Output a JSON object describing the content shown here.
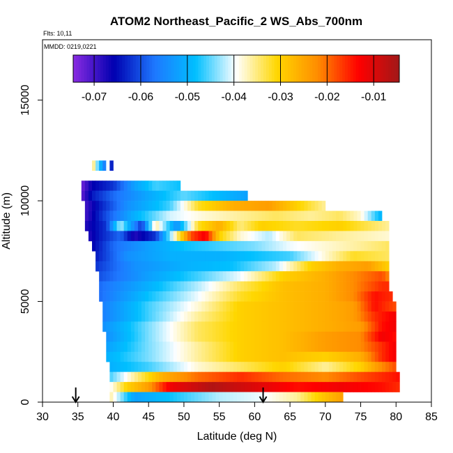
{
  "chart_data": {
    "type": "heatmap",
    "title": "ATOM2 Northeast_Pacific_2 WS_Abs_700nm",
    "flights_label": "Flts: 10,11",
    "dates_label": "MMDD: 0219,0221",
    "xlabel": "Latitude (deg N)",
    "ylabel": "Altitude (m)",
    "xlim": [
      30,
      85
    ],
    "ylim": [
      0,
      18000
    ],
    "x_ticks": [
      30,
      35,
      40,
      45,
      50,
      55,
      60,
      65,
      70,
      75,
      80,
      85
    ],
    "y_ticks": [
      0,
      5000,
      10000,
      15000
    ],
    "grid": false,
    "colorbar": {
      "position": "top-inset",
      "range": [
        -0.0745,
        -0.0045
      ],
      "ticks": [
        -0.07,
        -0.06,
        -0.05,
        -0.04,
        -0.03,
        -0.02,
        -0.01
      ],
      "tick_labels": [
        "-0.07",
        "-0.06",
        "-0.05",
        "-0.04",
        "-0.03",
        "-0.02",
        "-0.01"
      ],
      "colors": [
        "#8a2be2",
        "#0000b0",
        "#1e78ff",
        "#00bfff",
        "#ffffff",
        "#ffd700",
        "#ff8c00",
        "#ff0000",
        "#a01818"
      ]
    },
    "profile_markers": [
      {
        "lat": 34.7,
        "symbol": "arrow-down"
      },
      {
        "lat": 61.2,
        "symbol": "arrow-down"
      }
    ],
    "bands": [
      {
        "alt": [
          11500,
          12000
        ],
        "lat": [
          37,
          40
        ],
        "segments": [
          [
            37,
            -0.032
          ],
          [
            38,
            -0.048
          ],
          [
            38.8,
            -0.056
          ],
          [
            39.3,
            -0.038
          ],
          [
            39.8,
            -0.066
          ]
        ]
      },
      {
        "alt": [
          10500,
          11000
        ],
        "lat": [
          35.5,
          49.5
        ],
        "segments": [
          [
            35.5,
            -0.073
          ],
          [
            37,
            -0.066
          ],
          [
            40,
            -0.062
          ],
          [
            43,
            -0.052
          ],
          [
            46,
            -0.046
          ],
          [
            49.5,
            -0.048
          ]
        ]
      },
      {
        "alt": [
          10000,
          10500
        ],
        "lat": [
          35.5,
          59
        ],
        "segments": [
          [
            35.5,
            -0.072
          ],
          [
            37,
            -0.064
          ],
          [
            40,
            -0.058
          ],
          [
            45,
            -0.051
          ],
          [
            50,
            -0.045
          ],
          [
            55,
            -0.049
          ],
          [
            59,
            -0.052
          ]
        ]
      },
      {
        "alt": [
          9500,
          10000
        ],
        "lat": [
          36,
          70
        ],
        "segments": [
          [
            36,
            -0.07
          ],
          [
            38,
            -0.064
          ],
          [
            42,
            -0.054
          ],
          [
            48,
            -0.046
          ],
          [
            52,
            -0.032
          ],
          [
            57,
            -0.026
          ],
          [
            62,
            -0.024
          ],
          [
            66,
            -0.03
          ],
          [
            70,
            -0.036
          ]
        ]
      },
      {
        "alt": [
          9000,
          9500
        ],
        "lat": [
          36,
          78
        ],
        "segments": [
          [
            36,
            -0.07
          ],
          [
            39,
            -0.06
          ],
          [
            43,
            -0.05
          ],
          [
            48,
            -0.041
          ],
          [
            53,
            -0.038
          ],
          [
            58,
            -0.036
          ],
          [
            63,
            -0.034
          ],
          [
            68,
            -0.036
          ],
          [
            72,
            -0.034
          ],
          [
            75,
            -0.038
          ],
          [
            78,
            -0.05
          ]
        ]
      },
      {
        "alt": [
          8500,
          9000
        ],
        "lat": [
          36,
          79
        ],
        "segments": [
          [
            36,
            -0.068
          ],
          [
            39,
            -0.062
          ],
          [
            41,
            -0.042
          ],
          [
            44,
            -0.062
          ],
          [
            46,
            -0.036
          ],
          [
            49,
            -0.054
          ],
          [
            52,
            -0.032
          ],
          [
            55,
            -0.026
          ],
          [
            58,
            -0.035
          ],
          [
            61,
            -0.03
          ],
          [
            66,
            -0.032
          ],
          [
            72,
            -0.03
          ],
          [
            79,
            -0.036
          ]
        ]
      },
      {
        "alt": [
          8000,
          8500
        ],
        "lat": [
          36.5,
          79
        ],
        "segments": [
          [
            36.5,
            -0.068
          ],
          [
            38,
            -0.064
          ],
          [
            41,
            -0.058
          ],
          [
            43,
            -0.068
          ],
          [
            46,
            -0.062
          ],
          [
            48,
            -0.044
          ],
          [
            51,
            -0.018
          ],
          [
            53,
            -0.012
          ],
          [
            55,
            -0.03
          ],
          [
            58,
            -0.038
          ],
          [
            62,
            -0.042
          ],
          [
            66,
            -0.034
          ],
          [
            72,
            -0.036
          ],
          [
            79,
            -0.038
          ]
        ]
      },
      {
        "alt": [
          7500,
          8000
        ],
        "lat": [
          37,
          79
        ],
        "segments": [
          [
            37,
            -0.066
          ],
          [
            40,
            -0.058
          ],
          [
            45,
            -0.052
          ],
          [
            50,
            -0.048
          ],
          [
            55,
            -0.046
          ],
          [
            60,
            -0.044
          ],
          [
            65,
            -0.04
          ],
          [
            70,
            -0.038
          ],
          [
            75,
            -0.036
          ],
          [
            79,
            -0.034
          ]
        ]
      },
      {
        "alt": [
          7000,
          7500
        ],
        "lat": [
          37.5,
          79
        ],
        "segments": [
          [
            37.5,
            -0.064
          ],
          [
            42,
            -0.054
          ],
          [
            48,
            -0.05
          ],
          [
            55,
            -0.05
          ],
          [
            60,
            -0.048
          ],
          [
            65,
            -0.046
          ],
          [
            70,
            -0.038
          ],
          [
            74,
            -0.032
          ],
          [
            79,
            -0.034
          ]
        ]
      },
      {
        "alt": [
          6500,
          7000
        ],
        "lat": [
          37.5,
          79
        ],
        "segments": [
          [
            37.5,
            -0.062
          ],
          [
            43,
            -0.054
          ],
          [
            50,
            -0.05
          ],
          [
            57,
            -0.048
          ],
          [
            63,
            -0.042
          ],
          [
            68,
            -0.03
          ],
          [
            72,
            -0.026
          ],
          [
            76,
            -0.024
          ],
          [
            79,
            -0.03
          ]
        ]
      },
      {
        "alt": [
          6000,
          6500
        ],
        "lat": [
          38,
          79
        ],
        "segments": [
          [
            38,
            -0.06
          ],
          [
            45,
            -0.052
          ],
          [
            52,
            -0.046
          ],
          [
            58,
            -0.04
          ],
          [
            64,
            -0.03
          ],
          [
            70,
            -0.026
          ],
          [
            74,
            -0.022
          ],
          [
            78,
            -0.018
          ],
          [
            79,
            -0.022
          ]
        ]
      },
      {
        "alt": [
          5500,
          6000
        ],
        "lat": [
          38,
          79
        ],
        "segments": [
          [
            38,
            -0.058
          ],
          [
            45,
            -0.05
          ],
          [
            52,
            -0.042
          ],
          [
            58,
            -0.034
          ],
          [
            64,
            -0.028
          ],
          [
            70,
            -0.026
          ],
          [
            74,
            -0.022
          ],
          [
            78,
            -0.016
          ]
        ]
      },
      {
        "alt": [
          5000,
          5500
        ],
        "lat": [
          38,
          79.5
        ],
        "segments": [
          [
            38,
            -0.058
          ],
          [
            45,
            -0.048
          ],
          [
            52,
            -0.04
          ],
          [
            58,
            -0.032
          ],
          [
            64,
            -0.028
          ],
          [
            70,
            -0.026
          ],
          [
            74,
            -0.022
          ],
          [
            77,
            -0.014
          ],
          [
            79.5,
            -0.016
          ]
        ]
      },
      {
        "alt": [
          4500,
          5000
        ],
        "lat": [
          38.5,
          80
        ],
        "segments": [
          [
            38.5,
            -0.056
          ],
          [
            45,
            -0.046
          ],
          [
            52,
            -0.038
          ],
          [
            58,
            -0.03
          ],
          [
            64,
            -0.028
          ],
          [
            70,
            -0.026
          ],
          [
            74,
            -0.024
          ],
          [
            77,
            -0.014
          ],
          [
            80,
            -0.018
          ]
        ]
      },
      {
        "alt": [
          4000,
          4500
        ],
        "lat": [
          38.5,
          80
        ],
        "segments": [
          [
            38.5,
            -0.056
          ],
          [
            45,
            -0.046
          ],
          [
            52,
            -0.036
          ],
          [
            58,
            -0.03
          ],
          [
            64,
            -0.028
          ],
          [
            70,
            -0.026
          ],
          [
            74,
            -0.024
          ],
          [
            77,
            -0.016
          ],
          [
            80,
            -0.012
          ]
        ]
      },
      {
        "alt": [
          3500,
          4000
        ],
        "lat": [
          38.5,
          80
        ],
        "segments": [
          [
            38.5,
            -0.054
          ],
          [
            45,
            -0.044
          ],
          [
            52,
            -0.034
          ],
          [
            58,
            -0.03
          ],
          [
            64,
            -0.028
          ],
          [
            70,
            -0.026
          ],
          [
            75,
            -0.024
          ],
          [
            78,
            -0.014
          ],
          [
            80,
            -0.012
          ]
        ]
      },
      {
        "alt": [
          3000,
          3500
        ],
        "lat": [
          39,
          80
        ],
        "segments": [
          [
            39,
            -0.054
          ],
          [
            45,
            -0.044
          ],
          [
            52,
            -0.034
          ],
          [
            58,
            -0.03
          ],
          [
            64,
            -0.028
          ],
          [
            70,
            -0.024
          ],
          [
            75,
            -0.022
          ],
          [
            78,
            -0.012
          ],
          [
            80,
            -0.014
          ]
        ]
      },
      {
        "alt": [
          2500,
          3000
        ],
        "lat": [
          39,
          80
        ],
        "segments": [
          [
            39,
            -0.052
          ],
          [
            45,
            -0.044
          ],
          [
            52,
            -0.036
          ],
          [
            58,
            -0.03
          ],
          [
            64,
            -0.028
          ],
          [
            70,
            -0.024
          ],
          [
            75,
            -0.022
          ],
          [
            78,
            -0.016
          ],
          [
            80,
            -0.012
          ]
        ]
      },
      {
        "alt": [
          2000,
          2500
        ],
        "lat": [
          39,
          80
        ],
        "segments": [
          [
            39,
            -0.05
          ],
          [
            45,
            -0.044
          ],
          [
            52,
            -0.036
          ],
          [
            58,
            -0.03
          ],
          [
            64,
            -0.028
          ],
          [
            70,
            -0.03
          ],
          [
            75,
            -0.026
          ],
          [
            78,
            -0.016
          ],
          [
            80,
            -0.012
          ]
        ]
      },
      {
        "alt": [
          1500,
          2000
        ],
        "lat": [
          39.5,
          80
        ],
        "segments": [
          [
            39.5,
            -0.05
          ],
          [
            45,
            -0.046
          ],
          [
            52,
            -0.038
          ],
          [
            58,
            -0.034
          ],
          [
            64,
            -0.03
          ],
          [
            70,
            -0.036
          ],
          [
            75,
            -0.03
          ],
          [
            78,
            -0.022
          ],
          [
            80,
            -0.018
          ]
        ]
      },
      {
        "alt": [
          1000,
          1500
        ],
        "lat": [
          39.5,
          80.5
        ],
        "segments": [
          [
            39.5,
            -0.046
          ],
          [
            43,
            -0.036
          ],
          [
            47,
            -0.026
          ],
          [
            52,
            -0.02
          ],
          [
            58,
            -0.016
          ],
          [
            64,
            -0.02
          ],
          [
            70,
            -0.022
          ],
          [
            75,
            -0.018
          ],
          [
            80.5,
            -0.014
          ]
        ]
      },
      {
        "alt": [
          500,
          1000
        ],
        "lat": [
          39.5,
          80.5
        ],
        "segments": [
          [
            39.5,
            -0.04
          ],
          [
            42,
            -0.03
          ],
          [
            45,
            -0.024
          ],
          [
            48,
            -0.012
          ],
          [
            54,
            -0.006
          ],
          [
            60,
            -0.01
          ],
          [
            66,
            -0.014
          ],
          [
            72,
            -0.012
          ],
          [
            78,
            -0.014
          ],
          [
            80.5,
            -0.016
          ]
        ]
      },
      {
        "alt": [
          0,
          500
        ],
        "lat": [
          39.5,
          72.5
        ],
        "segments": [
          [
            39.5,
            -0.036
          ],
          [
            43,
            -0.052
          ],
          [
            48,
            -0.048
          ],
          [
            55,
            -0.042
          ],
          [
            61,
            -0.04
          ],
          [
            66,
            -0.036
          ],
          [
            70,
            -0.028
          ],
          [
            72.5,
            -0.024
          ]
        ]
      }
    ]
  }
}
